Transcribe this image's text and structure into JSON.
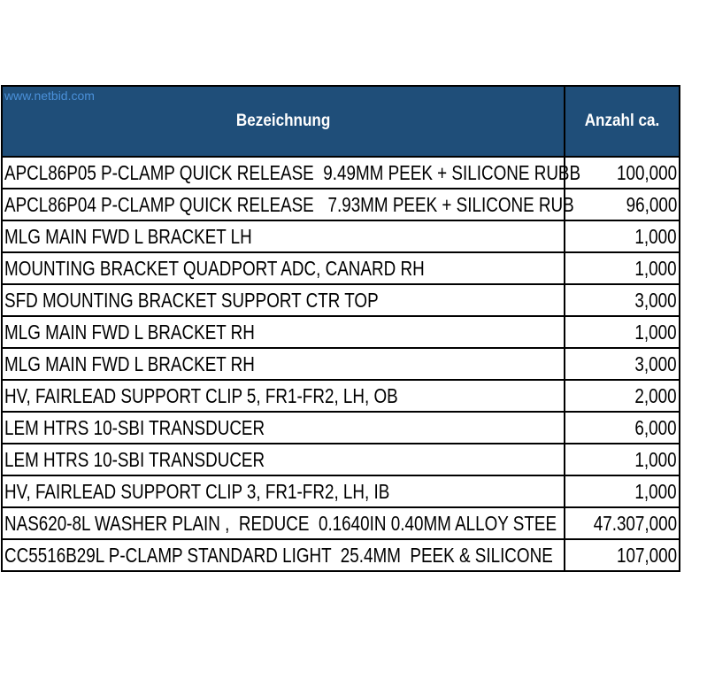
{
  "watermark": "www.netbid.com",
  "headers": {
    "description": "Bezeichnung",
    "quantity": "Anzahl ca."
  },
  "rows": [
    {
      "description": "APCL86P05 P-CLAMP QUICK RELEASE  9.49MM PEEK + SILICONE RUBB",
      "quantity": "100,000"
    },
    {
      "description": "APCL86P04 P-CLAMP QUICK RELEASE   7.93MM PEEK + SILICONE RUB",
      "quantity": "96,000"
    },
    {
      "description": "MLG MAIN FWD L BRACKET LH",
      "quantity": "1,000"
    },
    {
      "description": "MOUNTING BRACKET QUADPORT ADC, CANARD RH",
      "quantity": "1,000"
    },
    {
      "description": "SFD MOUNTING BRACKET SUPPORT CTR TOP",
      "quantity": "3,000"
    },
    {
      "description": "MLG MAIN FWD L BRACKET RH",
      "quantity": "1,000"
    },
    {
      "description": "MLG MAIN FWD L BRACKET RH",
      "quantity": "3,000"
    },
    {
      "description": "HV, FAIRLEAD SUPPORT CLIP 5, FR1-FR2, LH, OB",
      "quantity": "2,000"
    },
    {
      "description": "LEM HTRS 10-SBI TRANSDUCER",
      "quantity": "6,000"
    },
    {
      "description": "LEM HTRS 10-SBI TRANSDUCER",
      "quantity": "1,000"
    },
    {
      "description": "HV, FAIRLEAD SUPPORT CLIP 3, FR1-FR2, LH, IB",
      "quantity": "1,000"
    },
    {
      "description": "NAS620-8L WASHER PLAIN ,  REDUCE  0.1640IN 0.40MM ALLOY STEE",
      "quantity": "47.307,000"
    },
    {
      "description": "CC5516B29L P-CLAMP STANDARD LIGHT  25.4MM  PEEK & SILICONE",
      "quantity": "107,000"
    }
  ]
}
